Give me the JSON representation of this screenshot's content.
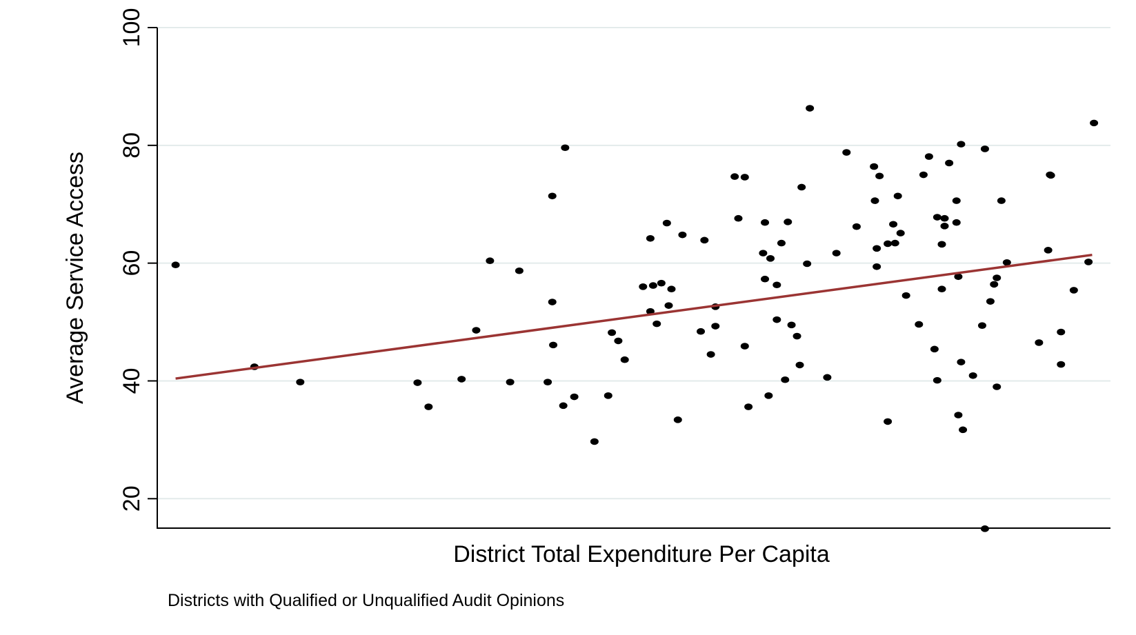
{
  "chart_data": {
    "type": "scatter",
    "title": "",
    "xlabel": "District Total Expenditure Per Capita",
    "ylabel": "Average Service Access",
    "note": "Districts with Qualified or Unqualified Audit Opinions",
    "xlim": [
      -2,
      102
    ],
    "ylim": [
      15,
      100
    ],
    "yticks": [
      20,
      40,
      60,
      80,
      100
    ],
    "ytick_labels": [
      "20",
      "40",
      "60",
      "80",
      "100"
    ],
    "xticks_shown": false,
    "grid": "horizontal",
    "legend": "none",
    "colors": {
      "points": "#000000",
      "fit_line": "#9b3433",
      "grid": "#e3ebeb",
      "axis": "#000000"
    },
    "fit_line": {
      "x": [
        0.0,
        100.0
      ],
      "y": [
        40.4,
        61.4
      ]
    },
    "points": [
      {
        "x": 0.0,
        "y": 59.7
      },
      {
        "x": 8.6,
        "y": 42.4
      },
      {
        "x": 13.6,
        "y": 39.8
      },
      {
        "x": 26.4,
        "y": 39.7
      },
      {
        "x": 27.6,
        "y": 35.6
      },
      {
        "x": 31.2,
        "y": 40.3
      },
      {
        "x": 32.8,
        "y": 48.6
      },
      {
        "x": 34.3,
        "y": 60.4
      },
      {
        "x": 36.5,
        "y": 39.8
      },
      {
        "x": 37.5,
        "y": 58.7
      },
      {
        "x": 40.6,
        "y": 39.8
      },
      {
        "x": 41.1,
        "y": 71.4
      },
      {
        "x": 41.1,
        "y": 53.4
      },
      {
        "x": 41.2,
        "y": 46.1
      },
      {
        "x": 42.3,
        "y": 35.8
      },
      {
        "x": 42.5,
        "y": 79.6
      },
      {
        "x": 43.5,
        "y": 37.3
      },
      {
        "x": 45.7,
        "y": 29.7
      },
      {
        "x": 47.2,
        "y": 37.5
      },
      {
        "x": 47.6,
        "y": 48.2
      },
      {
        "x": 48.3,
        "y": 46.8
      },
      {
        "x": 49.0,
        "y": 43.6
      },
      {
        "x": 51.0,
        "y": 56.0
      },
      {
        "x": 51.8,
        "y": 51.8
      },
      {
        "x": 51.8,
        "y": 64.2
      },
      {
        "x": 52.1,
        "y": 56.2
      },
      {
        "x": 52.5,
        "y": 49.7
      },
      {
        "x": 53.0,
        "y": 56.6
      },
      {
        "x": 53.6,
        "y": 66.8
      },
      {
        "x": 53.8,
        "y": 52.8
      },
      {
        "x": 54.1,
        "y": 55.6
      },
      {
        "x": 54.8,
        "y": 33.4
      },
      {
        "x": 55.3,
        "y": 64.8
      },
      {
        "x": 57.3,
        "y": 48.4
      },
      {
        "x": 57.7,
        "y": 63.9
      },
      {
        "x": 58.4,
        "y": 44.5
      },
      {
        "x": 58.9,
        "y": 52.6
      },
      {
        "x": 58.9,
        "y": 49.3
      },
      {
        "x": 61.0,
        "y": 74.7
      },
      {
        "x": 61.4,
        "y": 67.6
      },
      {
        "x": 62.1,
        "y": 74.6
      },
      {
        "x": 62.1,
        "y": 45.9
      },
      {
        "x": 62.5,
        "y": 35.6
      },
      {
        "x": 64.1,
        "y": 61.7
      },
      {
        "x": 64.3,
        "y": 66.9
      },
      {
        "x": 64.3,
        "y": 57.3
      },
      {
        "x": 64.7,
        "y": 37.5
      },
      {
        "x": 64.9,
        "y": 60.8
      },
      {
        "x": 65.6,
        "y": 56.3
      },
      {
        "x": 65.6,
        "y": 50.4
      },
      {
        "x": 66.1,
        "y": 63.4
      },
      {
        "x": 66.5,
        "y": 40.2
      },
      {
        "x": 66.8,
        "y": 67.0
      },
      {
        "x": 67.2,
        "y": 49.5
      },
      {
        "x": 67.8,
        "y": 47.6
      },
      {
        "x": 68.1,
        "y": 42.7
      },
      {
        "x": 68.3,
        "y": 72.9
      },
      {
        "x": 68.9,
        "y": 59.9
      },
      {
        "x": 69.2,
        "y": 86.3
      },
      {
        "x": 71.1,
        "y": 40.6
      },
      {
        "x": 72.1,
        "y": 61.7
      },
      {
        "x": 73.2,
        "y": 78.8
      },
      {
        "x": 74.3,
        "y": 66.2
      },
      {
        "x": 76.2,
        "y": 76.4
      },
      {
        "x": 76.3,
        "y": 70.6
      },
      {
        "x": 76.5,
        "y": 62.5
      },
      {
        "x": 76.5,
        "y": 59.4
      },
      {
        "x": 76.8,
        "y": 74.8
      },
      {
        "x": 77.7,
        "y": 63.3
      },
      {
        "x": 77.7,
        "y": 33.1
      },
      {
        "x": 78.3,
        "y": 66.6
      },
      {
        "x": 78.5,
        "y": 63.4
      },
      {
        "x": 78.8,
        "y": 71.4
      },
      {
        "x": 79.1,
        "y": 65.1
      },
      {
        "x": 79.7,
        "y": 54.5
      },
      {
        "x": 81.1,
        "y": 49.6
      },
      {
        "x": 81.6,
        "y": 75.0
      },
      {
        "x": 82.2,
        "y": 78.1
      },
      {
        "x": 82.8,
        "y": 45.4
      },
      {
        "x": 83.1,
        "y": 40.1
      },
      {
        "x": 83.1,
        "y": 67.8
      },
      {
        "x": 83.6,
        "y": 63.2
      },
      {
        "x": 83.6,
        "y": 55.6
      },
      {
        "x": 83.9,
        "y": 67.6
      },
      {
        "x": 83.9,
        "y": 66.3
      },
      {
        "x": 84.4,
        "y": 77.0
      },
      {
        "x": 85.2,
        "y": 70.6
      },
      {
        "x": 85.2,
        "y": 66.9
      },
      {
        "x": 85.4,
        "y": 57.7
      },
      {
        "x": 85.4,
        "y": 34.2
      },
      {
        "x": 85.7,
        "y": 80.2
      },
      {
        "x": 85.7,
        "y": 43.2
      },
      {
        "x": 85.9,
        "y": 31.7
      },
      {
        "x": 87.0,
        "y": 40.9
      },
      {
        "x": 88.0,
        "y": 49.4
      },
      {
        "x": 88.3,
        "y": 79.4
      },
      {
        "x": 88.3,
        "y": 14.9
      },
      {
        "x": 88.9,
        "y": 53.5
      },
      {
        "x": 89.3,
        "y": 56.4
      },
      {
        "x": 89.6,
        "y": 57.5
      },
      {
        "x": 89.6,
        "y": 39.0
      },
      {
        "x": 90.1,
        "y": 70.6
      },
      {
        "x": 90.7,
        "y": 60.1
      },
      {
        "x": 94.2,
        "y": 46.5
      },
      {
        "x": 95.2,
        "y": 62.2
      },
      {
        "x": 95.4,
        "y": 75.0
      },
      {
        "x": 95.5,
        "y": 74.9
      },
      {
        "x": 96.6,
        "y": 48.3
      },
      {
        "x": 96.6,
        "y": 42.8
      },
      {
        "x": 98.0,
        "y": 55.4
      },
      {
        "x": 99.6,
        "y": 60.2
      },
      {
        "x": 100.2,
        "y": 83.8
      }
    ]
  }
}
